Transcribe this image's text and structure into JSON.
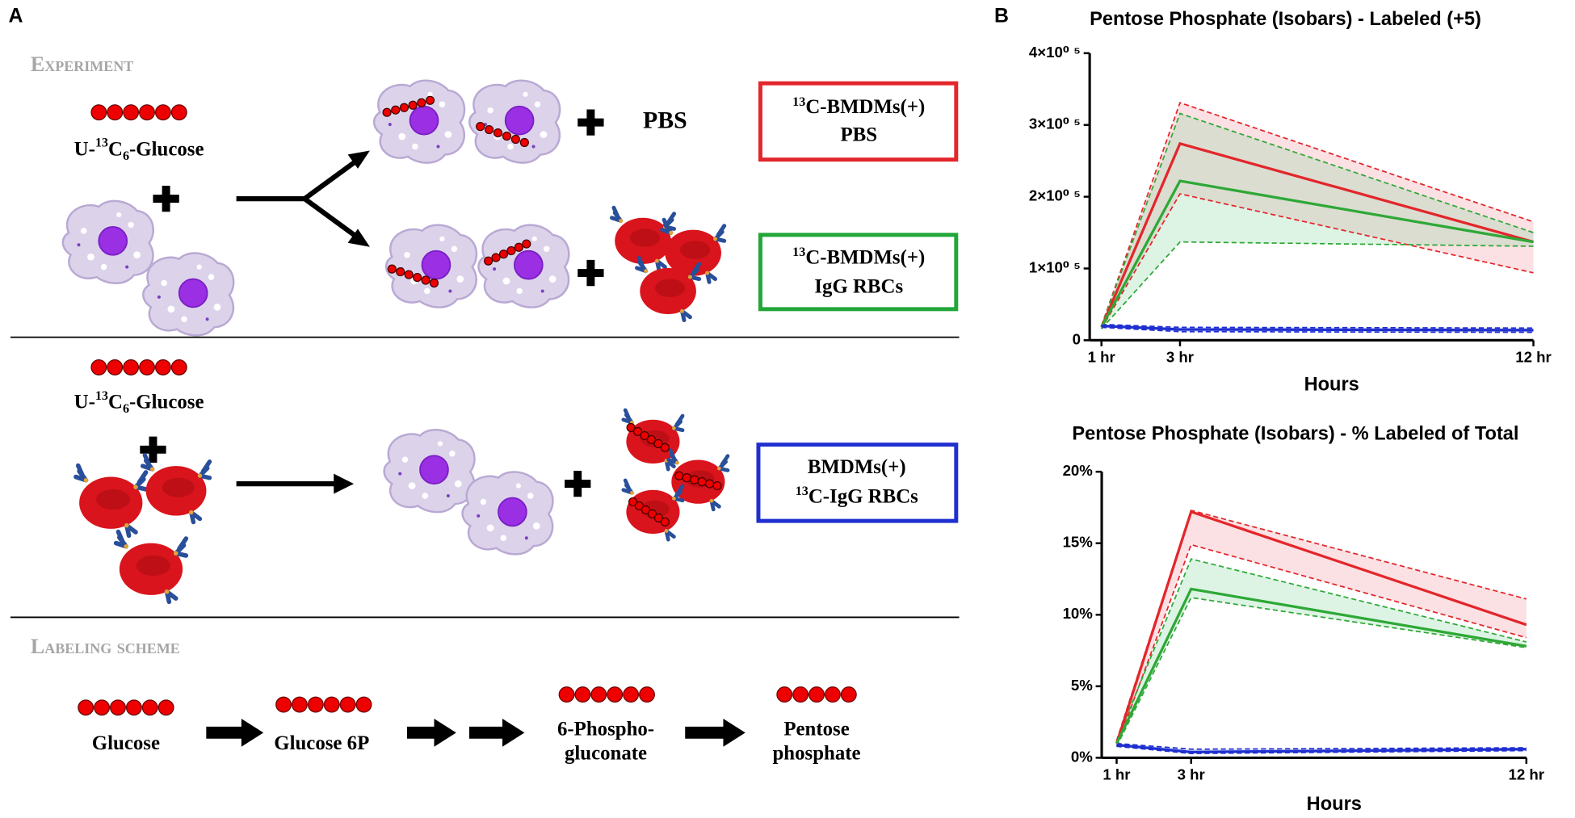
{
  "panel_a": {
    "label": "A",
    "experiment": "Experiment",
    "glucose_label": [
      "U-",
      "13",
      "C",
      "6",
      "-Glucose"
    ],
    "pbs": "PBS",
    "boxes": [
      {
        "line1": [
          "13",
          "C-BMDMs(+)"
        ],
        "line2": "PBS"
      },
      {
        "line1": [
          "13",
          "C-BMDMs(+)"
        ],
        "line2": "IgG RBCs"
      },
      {
        "line1": "BMDMs(+)",
        "line2": [
          "13",
          "C-IgG RBCs"
        ]
      }
    ],
    "glucose_label_2": [
      "U-",
      "13",
      "C",
      "6",
      "-Glucose"
    ],
    "labeling_scheme": "Labeling scheme",
    "pathway": [
      [
        "Glucose"
      ],
      [
        "Glucose 6P"
      ],
      [
        "6-Phospho-",
        "gluconate"
      ],
      [
        "Pentose",
        "phosphate"
      ]
    ]
  },
  "panel_b": {
    "label": "B"
  },
  "chart_data": [
    {
      "type": "line",
      "title": "Pentose Phosphate (Isobars) - Labeled (+5)",
      "x_label": "Hours",
      "x": [
        1,
        3,
        12
      ],
      "xlim": [
        0.7,
        12
      ],
      "xticks": [
        {
          "value": 1,
          "label": "1 hr"
        },
        {
          "value": 3,
          "label": "3 hr"
        },
        {
          "value": 12,
          "label": "12 hr"
        }
      ],
      "ylim": [
        0,
        400000
      ],
      "yticks": [
        0,
        {
          "value": 100000,
          "label": "1×10⁰ ⁵"
        },
        {
          "value": 200000,
          "label": "2×10⁰ ⁵"
        },
        {
          "value": 300000,
          "label": "3×10⁰ ⁵"
        },
        {
          "value": 400000,
          "label": "4×10⁰ ⁵"
        }
      ],
      "series": [
        {
          "color": "#e3262b",
          "band_color": "rgba(240,120,130,0.22)",
          "values": [
            18000,
            274000,
            137000
          ],
          "upper": [
            20000,
            331000,
            165000
          ],
          "lower": [
            16000,
            204000,
            94000
          ]
        },
        {
          "color": "#2ea836",
          "band_color": "rgba(120,210,150,0.25)",
          "values": [
            18000,
            222000,
            137000
          ],
          "upper": [
            20000,
            316000,
            150000
          ],
          "lower": [
            16000,
            137000,
            131000
          ]
        },
        {
          "color": "#1f2fd0",
          "band_color": "rgba(90,110,230,0.2)",
          "values": [
            20000,
            15000,
            14000
          ],
          "upper": [
            22000,
            18000,
            17000
          ],
          "lower": [
            18000,
            12000,
            11000
          ]
        }
      ]
    },
    {
      "type": "line",
      "title": "Pentose Phosphate (Isobars) - % Labeled of Total",
      "x_label": "Hours",
      "x": [
        1,
        3,
        12
      ],
      "xlim": [
        0.6,
        12
      ],
      "xticks": [
        {
          "value": 1,
          "label": "1 hr"
        },
        {
          "value": 3,
          "label": "3 hr"
        },
        {
          "value": 12,
          "label": "12 hr"
        }
      ],
      "ylim": [
        0,
        20
      ],
      "yticks": [
        {
          "value": 0,
          "label": "0%"
        },
        {
          "value": 5,
          "label": "5%"
        },
        {
          "value": 10,
          "label": "10%"
        },
        {
          "value": 15,
          "label": "15%"
        },
        {
          "value": 20,
          "label": "20%"
        }
      ],
      "series": [
        {
          "color": "#e3262b",
          "band_color": "rgba(240,120,130,0.22)",
          "values": [
            1.0,
            17.2,
            9.3
          ],
          "upper": [
            1.2,
            17.3,
            11.1
          ],
          "lower": [
            0.8,
            14.9,
            8.4
          ]
        },
        {
          "color": "#2ea836",
          "band_color": "rgba(120,210,150,0.25)",
          "values": [
            1.0,
            11.8,
            7.8
          ],
          "upper": [
            1.2,
            13.9,
            8.1
          ],
          "lower": [
            0.8,
            11.2,
            7.7
          ]
        },
        {
          "color": "#1f2fd0",
          "band_color": "rgba(90,110,230,0.2)",
          "values": [
            0.9,
            0.4,
            0.6
          ],
          "upper": [
            1.0,
            0.6,
            0.7
          ],
          "lower": [
            0.8,
            0.3,
            0.5
          ]
        }
      ]
    }
  ]
}
